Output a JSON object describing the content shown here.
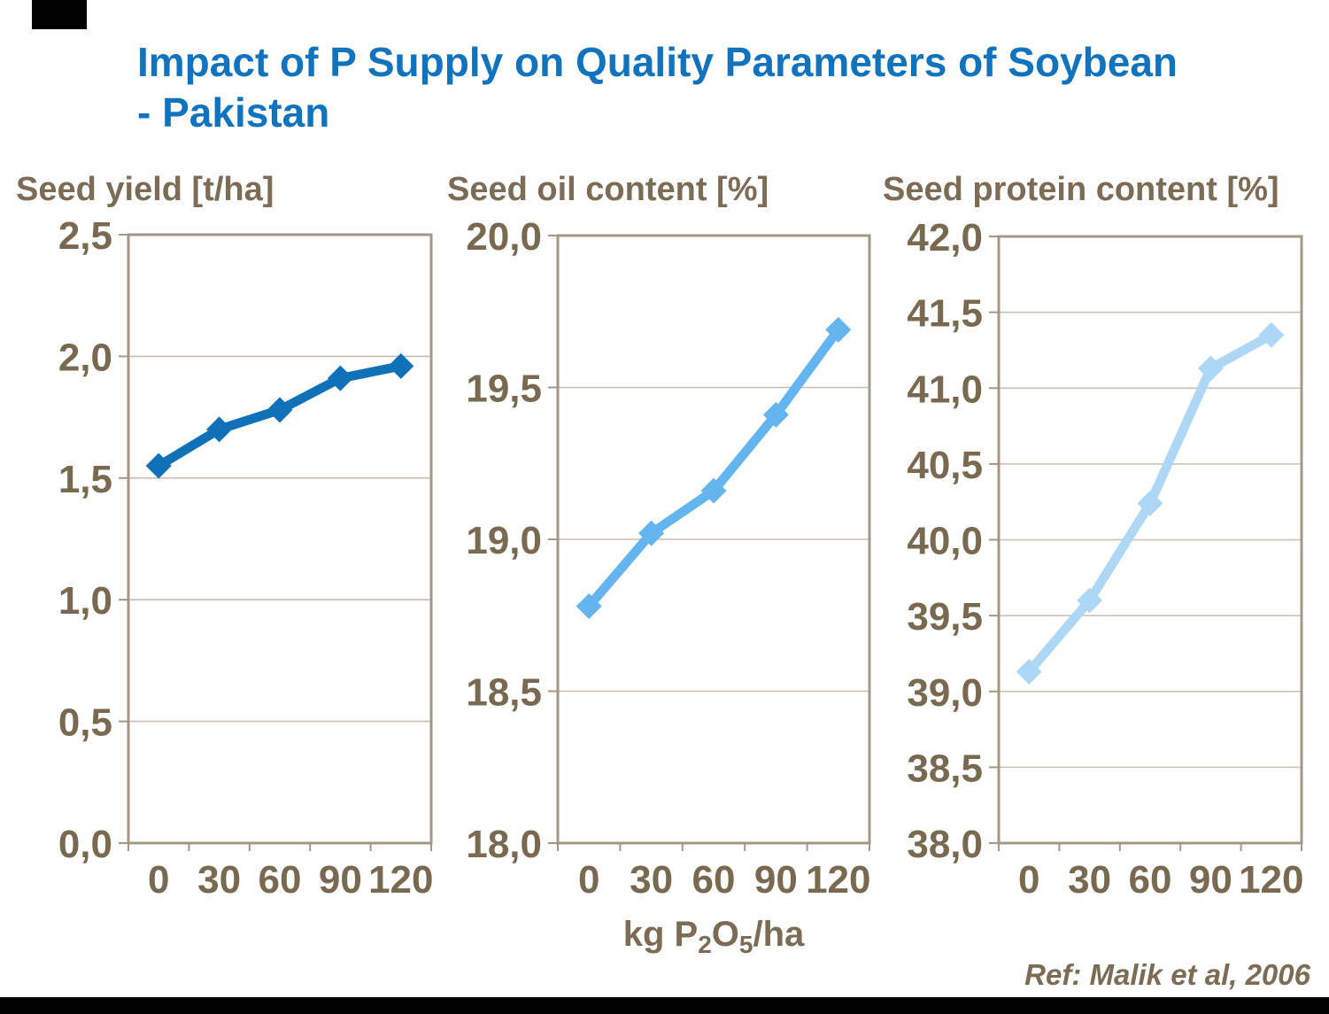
{
  "page": {
    "title_line1": "Impact of P Supply on Quality Parameters of Soybean",
    "title_line2": "- Pakistan",
    "x_axis_title_parts": [
      {
        "text": "kg P"
      },
      {
        "text": "2",
        "sub": true
      },
      {
        "text": "O"
      },
      {
        "text": "5",
        "sub": true
      },
      {
        "text": "/ha"
      }
    ],
    "x_axis_title_plain": "kg P2O5/ha",
    "reference": "Ref: Malik et al, 2006"
  },
  "style": {
    "title_color": "#1173BE",
    "text_brown": "#7D6C55",
    "tick_label_color": "#7A6951",
    "frame_color": "#A59786",
    "grid_color": "#C9BDB0",
    "decor_bar_color": "#000000",
    "background": "#FFFFFF"
  },
  "chart_data": [
    {
      "type": "line",
      "title": "Seed yield [t/ha]",
      "xlabel": "kg P2O5/ha",
      "x": [
        0,
        30,
        60,
        90,
        120
      ],
      "values": [
        1.55,
        1.7,
        1.78,
        1.91,
        1.96
      ],
      "ylim": [
        0.0,
        2.5
      ],
      "ytick_step": 0.5,
      "ytick_labels": [
        "2,5",
        "2,0",
        "1,5",
        "1,0",
        "0,5",
        "0,0"
      ],
      "xtick_labels": [
        "0",
        "30",
        "60",
        "90",
        "120"
      ],
      "line_color": "#1071B8",
      "marker": "diamond",
      "grid": true,
      "legend": "none"
    },
    {
      "type": "line",
      "title": "Seed oil content [%]",
      "xlabel": "kg P2O5/ha",
      "x": [
        0,
        30,
        60,
        90,
        120
      ],
      "values": [
        18.78,
        19.02,
        19.16,
        19.41,
        19.69
      ],
      "ylim": [
        18.0,
        20.0
      ],
      "ytick_step": 0.5,
      "ytick_labels": [
        "20,0",
        "19,5",
        "19,0",
        "18,5",
        "18,0"
      ],
      "xtick_labels": [
        "0",
        "30",
        "60",
        "90",
        "120"
      ],
      "line_color": "#63B4EF",
      "marker": "diamond",
      "grid": true,
      "legend": "none"
    },
    {
      "type": "line",
      "title": "Seed protein content [%]",
      "xlabel": "kg P2O5/ha",
      "x": [
        0,
        30,
        60,
        90,
        120
      ],
      "values": [
        39.13,
        39.6,
        40.24,
        41.13,
        41.35
      ],
      "ylim": [
        38.0,
        42.0
      ],
      "ytick_step": 0.5,
      "ytick_labels": [
        "42,0",
        "41,5",
        "41,0",
        "40,5",
        "40,0",
        "39,5",
        "39,0",
        "38,5",
        "38,0"
      ],
      "xtick_labels": [
        "0",
        "30",
        "60",
        "90",
        "120"
      ],
      "line_color": "#AED7F5",
      "marker": "diamond",
      "grid": true,
      "legend": "none"
    }
  ]
}
